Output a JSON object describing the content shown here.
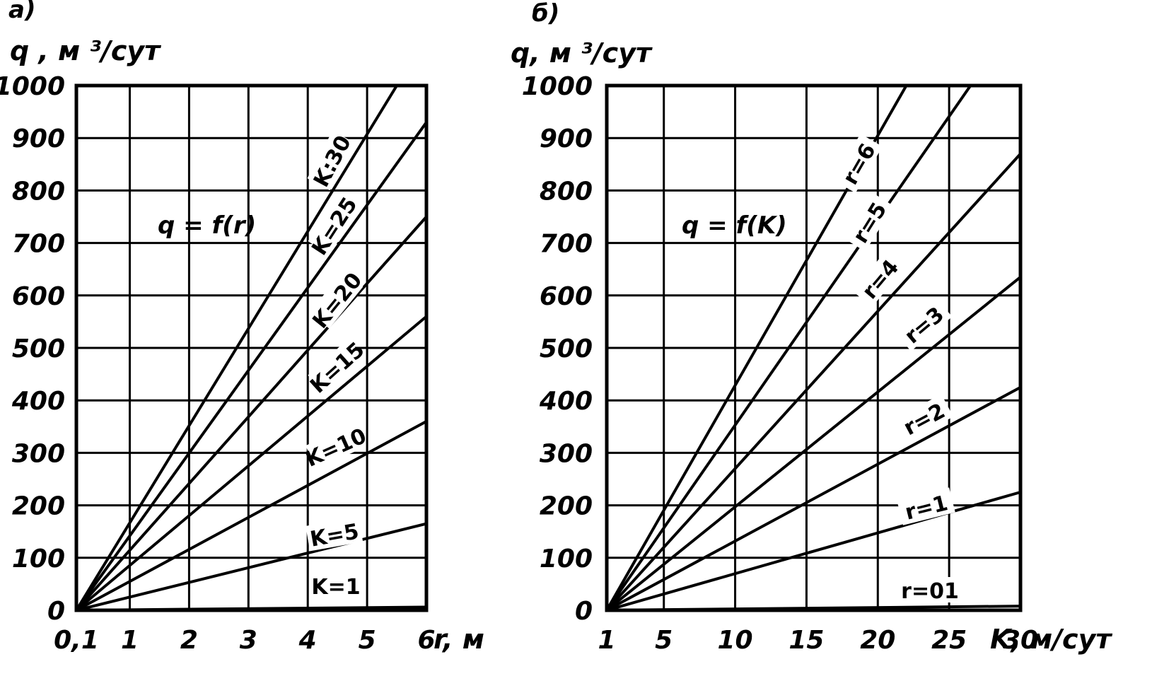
{
  "chart_data": [
    {
      "type": "line",
      "panel_label": "а)",
      "formula": "q = f(r)",
      "ylabel": "q , м ³/сут",
      "xlabel": "r, м",
      "xlim": [
        0.1,
        6
      ],
      "ylim": [
        0,
        1000
      ],
      "grid": true,
      "x_ticks": [
        0.1,
        1,
        2,
        3,
        4,
        5,
        6
      ],
      "x_tick_labels": [
        "0,1",
        "1",
        "2",
        "3",
        "4",
        "5",
        "6"
      ],
      "y_ticks": [
        0,
        100,
        200,
        300,
        400,
        500,
        600,
        700,
        800,
        900,
        1000
      ],
      "y_tick_labels": [
        "0",
        "100",
        "200",
        "300",
        "400",
        "500",
        "600",
        "700",
        "800",
        "900",
        "1000"
      ],
      "series": [
        {
          "name": "K=1",
          "x": [
            0.1,
            6
          ],
          "y": [
            0,
            6
          ]
        },
        {
          "name": "K=5",
          "x": [
            0.1,
            6
          ],
          "y": [
            0,
            165
          ]
        },
        {
          "name": "K=10",
          "x": [
            0.1,
            6
          ],
          "y": [
            0,
            360
          ]
        },
        {
          "name": "K=15",
          "x": [
            0.1,
            6
          ],
          "y": [
            0,
            560
          ]
        },
        {
          "name": "K=20",
          "x": [
            0.1,
            6
          ],
          "y": [
            0,
            750
          ]
        },
        {
          "name": "K=25",
          "x": [
            0.1,
            6
          ],
          "y": [
            0,
            930
          ]
        },
        {
          "name": "K:30",
          "x": [
            0.1,
            5.5
          ],
          "y": [
            0,
            1000
          ]
        }
      ]
    },
    {
      "type": "line",
      "panel_label": "б)",
      "formula": "q = f(K)",
      "ylabel": "q, м ³/сут",
      "xlabel": "K, м/сут",
      "xlim": [
        1,
        30
      ],
      "ylim": [
        0,
        1000
      ],
      "grid": true,
      "x_ticks": [
        1,
        5,
        10,
        15,
        20,
        25,
        30
      ],
      "x_tick_labels": [
        "1",
        "5",
        "10",
        "15",
        "20",
        "25",
        "30"
      ],
      "y_ticks": [
        0,
        100,
        200,
        300,
        400,
        500,
        600,
        700,
        800,
        900,
        1000
      ],
      "y_tick_labels": [
        "0",
        "100",
        "200",
        "300",
        "400",
        "500",
        "600",
        "700",
        "800",
        "900",
        "1000"
      ],
      "series": [
        {
          "name": "r=01",
          "x": [
            1,
            30
          ],
          "y": [
            0,
            8
          ]
        },
        {
          "name": "r=1",
          "x": [
            1,
            30
          ],
          "y": [
            0,
            225
          ]
        },
        {
          "name": "r=2",
          "x": [
            1,
            30
          ],
          "y": [
            0,
            425
          ]
        },
        {
          "name": "r=3",
          "x": [
            1,
            30
          ],
          "y": [
            0,
            635
          ]
        },
        {
          "name": "r=4",
          "x": [
            1,
            30
          ],
          "y": [
            0,
            870
          ]
        },
        {
          "name": "r=5",
          "x": [
            1,
            26.5
          ],
          "y": [
            0,
            1000
          ]
        },
        {
          "name": "r=6",
          "x": [
            1,
            22
          ],
          "y": [
            0,
            1000
          ]
        }
      ]
    }
  ]
}
